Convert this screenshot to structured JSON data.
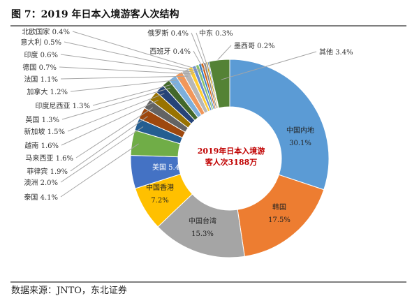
{
  "title": "图 7：2019 年日本入境游客人次结构",
  "source": "数据来源：JNTO，东北证券",
  "chart_data": {
    "type": "pie",
    "donut": true,
    "center_label": [
      "2019年日本入境游",
      "客人次3188万"
    ],
    "center_label_color": "#c00000",
    "unit": "%",
    "slices": [
      {
        "name": "中国内地",
        "value": 30.1,
        "color": "#5b9bd5"
      },
      {
        "name": "韩国",
        "value": 17.5,
        "color": "#ed7d31"
      },
      {
        "name": "中国台湾",
        "value": 15.3,
        "color": "#a5a5a5"
      },
      {
        "name": "中国香港",
        "value": 7.2,
        "color": "#ffc000"
      },
      {
        "name": "美国",
        "value": 5.4,
        "color": "#4472c4"
      },
      {
        "name": "泰国",
        "value": 4.1,
        "color": "#70ad47"
      },
      {
        "name": "澳洲",
        "value": 2.0,
        "color": "#255e91"
      },
      {
        "name": "菲律宾",
        "value": 1.9,
        "color": "#9e480e"
      },
      {
        "name": "马来西亚",
        "value": 1.6,
        "color": "#636363"
      },
      {
        "name": "越南",
        "value": 1.6,
        "color": "#997300"
      },
      {
        "name": "新加坡",
        "value": 1.5,
        "color": "#264478"
      },
      {
        "name": "英国",
        "value": 1.3,
        "color": "#43682b"
      },
      {
        "name": "印度尼西亚",
        "value": 1.3,
        "color": "#7cafdd"
      },
      {
        "name": "加拿大",
        "value": 1.2,
        "color": "#f1975a"
      },
      {
        "name": "法国",
        "value": 1.1,
        "color": "#b7b7b7"
      },
      {
        "name": "德国",
        "value": 0.7,
        "color": "#ffcd33"
      },
      {
        "name": "印度",
        "value": 0.6,
        "color": "#698ed0"
      },
      {
        "name": "意大利",
        "value": 0.5,
        "color": "#8cc168"
      },
      {
        "name": "北欧国家",
        "value": 0.4,
        "color": "#327dc2"
      },
      {
        "name": "西班牙",
        "value": 0.4,
        "color": "#d26012"
      },
      {
        "name": "俄罗斯",
        "value": 0.4,
        "color": "#848484"
      },
      {
        "name": "中东",
        "value": 0.3,
        "color": "#cc9a00"
      },
      {
        "name": "墨西哥",
        "value": 0.2,
        "color": "#335aa1"
      },
      {
        "name": "其他",
        "value": 3.4,
        "color": "#548235"
      }
    ]
  }
}
